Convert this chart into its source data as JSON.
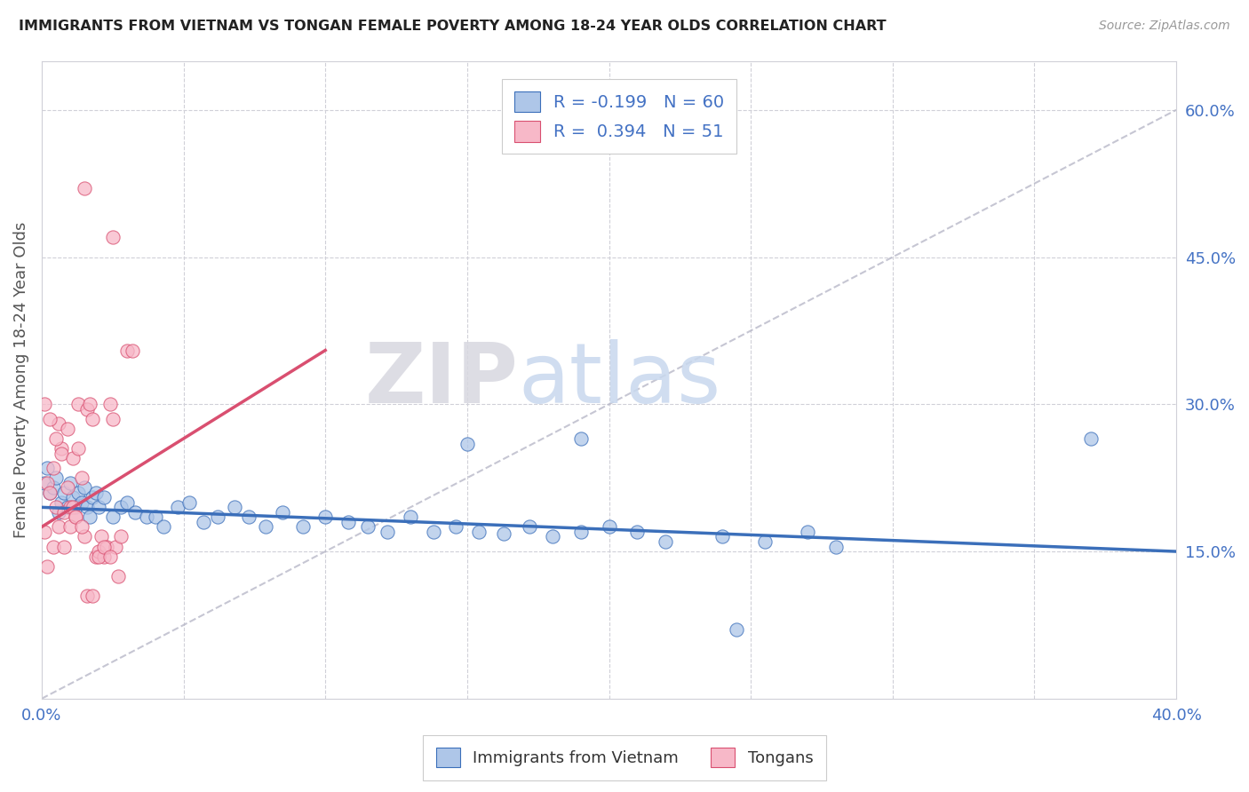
{
  "title": "IMMIGRANTS FROM VIETNAM VS TONGAN FEMALE POVERTY AMONG 18-24 YEAR OLDS CORRELATION CHART",
  "source": "Source: ZipAtlas.com",
  "ylabel": "Female Poverty Among 18-24 Year Olds",
  "xlim": [
    0.0,
    0.4
  ],
  "ylim": [
    0.0,
    0.65
  ],
  "R_vietnam": -0.199,
  "N_vietnam": 60,
  "R_tongan": 0.394,
  "N_tongan": 51,
  "color_vietnam": "#aec6e8",
  "color_tongan": "#f7b8c8",
  "line_color_vietnam": "#3b6fba",
  "line_color_tongan": "#d94f70",
  "line_color_ref": "#b8b8c8",
  "watermark_zip": "ZIP",
  "watermark_atlas": "atlas",
  "vietnam_line_x0": 0.0,
  "vietnam_line_y0": 0.195,
  "vietnam_line_x1": 0.4,
  "vietnam_line_y1": 0.15,
  "tongan_line_x0": 0.0,
  "tongan_line_y0": 0.175,
  "tongan_line_x1": 0.1,
  "tongan_line_y1": 0.355,
  "ref_line_x0": 0.0,
  "ref_line_y0": 0.0,
  "ref_line_x1": 0.4,
  "ref_line_y1": 0.6,
  "vietnam_pts": [
    [
      0.001,
      0.22
    ],
    [
      0.002,
      0.235
    ],
    [
      0.003,
      0.21
    ],
    [
      0.004,
      0.215
    ],
    [
      0.005,
      0.225
    ],
    [
      0.006,
      0.19
    ],
    [
      0.007,
      0.2
    ],
    [
      0.008,
      0.21
    ],
    [
      0.009,
      0.195
    ],
    [
      0.01,
      0.22
    ],
    [
      0.011,
      0.205
    ],
    [
      0.012,
      0.195
    ],
    [
      0.013,
      0.21
    ],
    [
      0.014,
      0.2
    ],
    [
      0.015,
      0.215
    ],
    [
      0.016,
      0.195
    ],
    [
      0.017,
      0.185
    ],
    [
      0.018,
      0.205
    ],
    [
      0.019,
      0.21
    ],
    [
      0.02,
      0.195
    ],
    [
      0.022,
      0.205
    ],
    [
      0.025,
      0.185
    ],
    [
      0.028,
      0.195
    ],
    [
      0.03,
      0.2
    ],
    [
      0.033,
      0.19
    ],
    [
      0.037,
      0.185
    ],
    [
      0.04,
      0.185
    ],
    [
      0.043,
      0.175
    ],
    [
      0.048,
      0.195
    ],
    [
      0.052,
      0.2
    ],
    [
      0.057,
      0.18
    ],
    [
      0.062,
      0.185
    ],
    [
      0.068,
      0.195
    ],
    [
      0.073,
      0.185
    ],
    [
      0.079,
      0.175
    ],
    [
      0.085,
      0.19
    ],
    [
      0.092,
      0.175
    ],
    [
      0.1,
      0.185
    ],
    [
      0.108,
      0.18
    ],
    [
      0.115,
      0.175
    ],
    [
      0.122,
      0.17
    ],
    [
      0.13,
      0.185
    ],
    [
      0.138,
      0.17
    ],
    [
      0.146,
      0.175
    ],
    [
      0.154,
      0.17
    ],
    [
      0.163,
      0.168
    ],
    [
      0.172,
      0.175
    ],
    [
      0.18,
      0.165
    ],
    [
      0.19,
      0.17
    ],
    [
      0.2,
      0.175
    ],
    [
      0.21,
      0.17
    ],
    [
      0.22,
      0.16
    ],
    [
      0.24,
      0.165
    ],
    [
      0.255,
      0.16
    ],
    [
      0.27,
      0.17
    ],
    [
      0.15,
      0.26
    ],
    [
      0.19,
      0.265
    ],
    [
      0.37,
      0.265
    ],
    [
      0.245,
      0.07
    ],
    [
      0.28,
      0.155
    ]
  ],
  "tongan_pts": [
    [
      0.001,
      0.17
    ],
    [
      0.002,
      0.22
    ],
    [
      0.003,
      0.21
    ],
    [
      0.004,
      0.235
    ],
    [
      0.005,
      0.195
    ],
    [
      0.006,
      0.28
    ],
    [
      0.007,
      0.255
    ],
    [
      0.008,
      0.19
    ],
    [
      0.009,
      0.215
    ],
    [
      0.01,
      0.195
    ],
    [
      0.011,
      0.195
    ],
    [
      0.012,
      0.185
    ],
    [
      0.013,
      0.3
    ],
    [
      0.014,
      0.225
    ],
    [
      0.015,
      0.165
    ],
    [
      0.016,
      0.295
    ],
    [
      0.017,
      0.3
    ],
    [
      0.018,
      0.285
    ],
    [
      0.019,
      0.145
    ],
    [
      0.02,
      0.15
    ],
    [
      0.021,
      0.165
    ],
    [
      0.022,
      0.145
    ],
    [
      0.023,
      0.155
    ],
    [
      0.024,
      0.3
    ],
    [
      0.025,
      0.285
    ],
    [
      0.026,
      0.155
    ],
    [
      0.027,
      0.125
    ],
    [
      0.028,
      0.165
    ],
    [
      0.015,
      0.52
    ],
    [
      0.025,
      0.47
    ],
    [
      0.03,
      0.355
    ],
    [
      0.032,
      0.355
    ],
    [
      0.001,
      0.3
    ],
    [
      0.003,
      0.285
    ],
    [
      0.005,
      0.265
    ],
    [
      0.007,
      0.25
    ],
    [
      0.009,
      0.275
    ],
    [
      0.011,
      0.245
    ],
    [
      0.013,
      0.255
    ],
    [
      0.002,
      0.135
    ],
    [
      0.004,
      0.155
    ],
    [
      0.006,
      0.175
    ],
    [
      0.008,
      0.155
    ],
    [
      0.01,
      0.175
    ],
    [
      0.012,
      0.185
    ],
    [
      0.014,
      0.175
    ],
    [
      0.02,
      0.145
    ],
    [
      0.022,
      0.155
    ],
    [
      0.024,
      0.145
    ],
    [
      0.016,
      0.105
    ],
    [
      0.018,
      0.105
    ]
  ]
}
